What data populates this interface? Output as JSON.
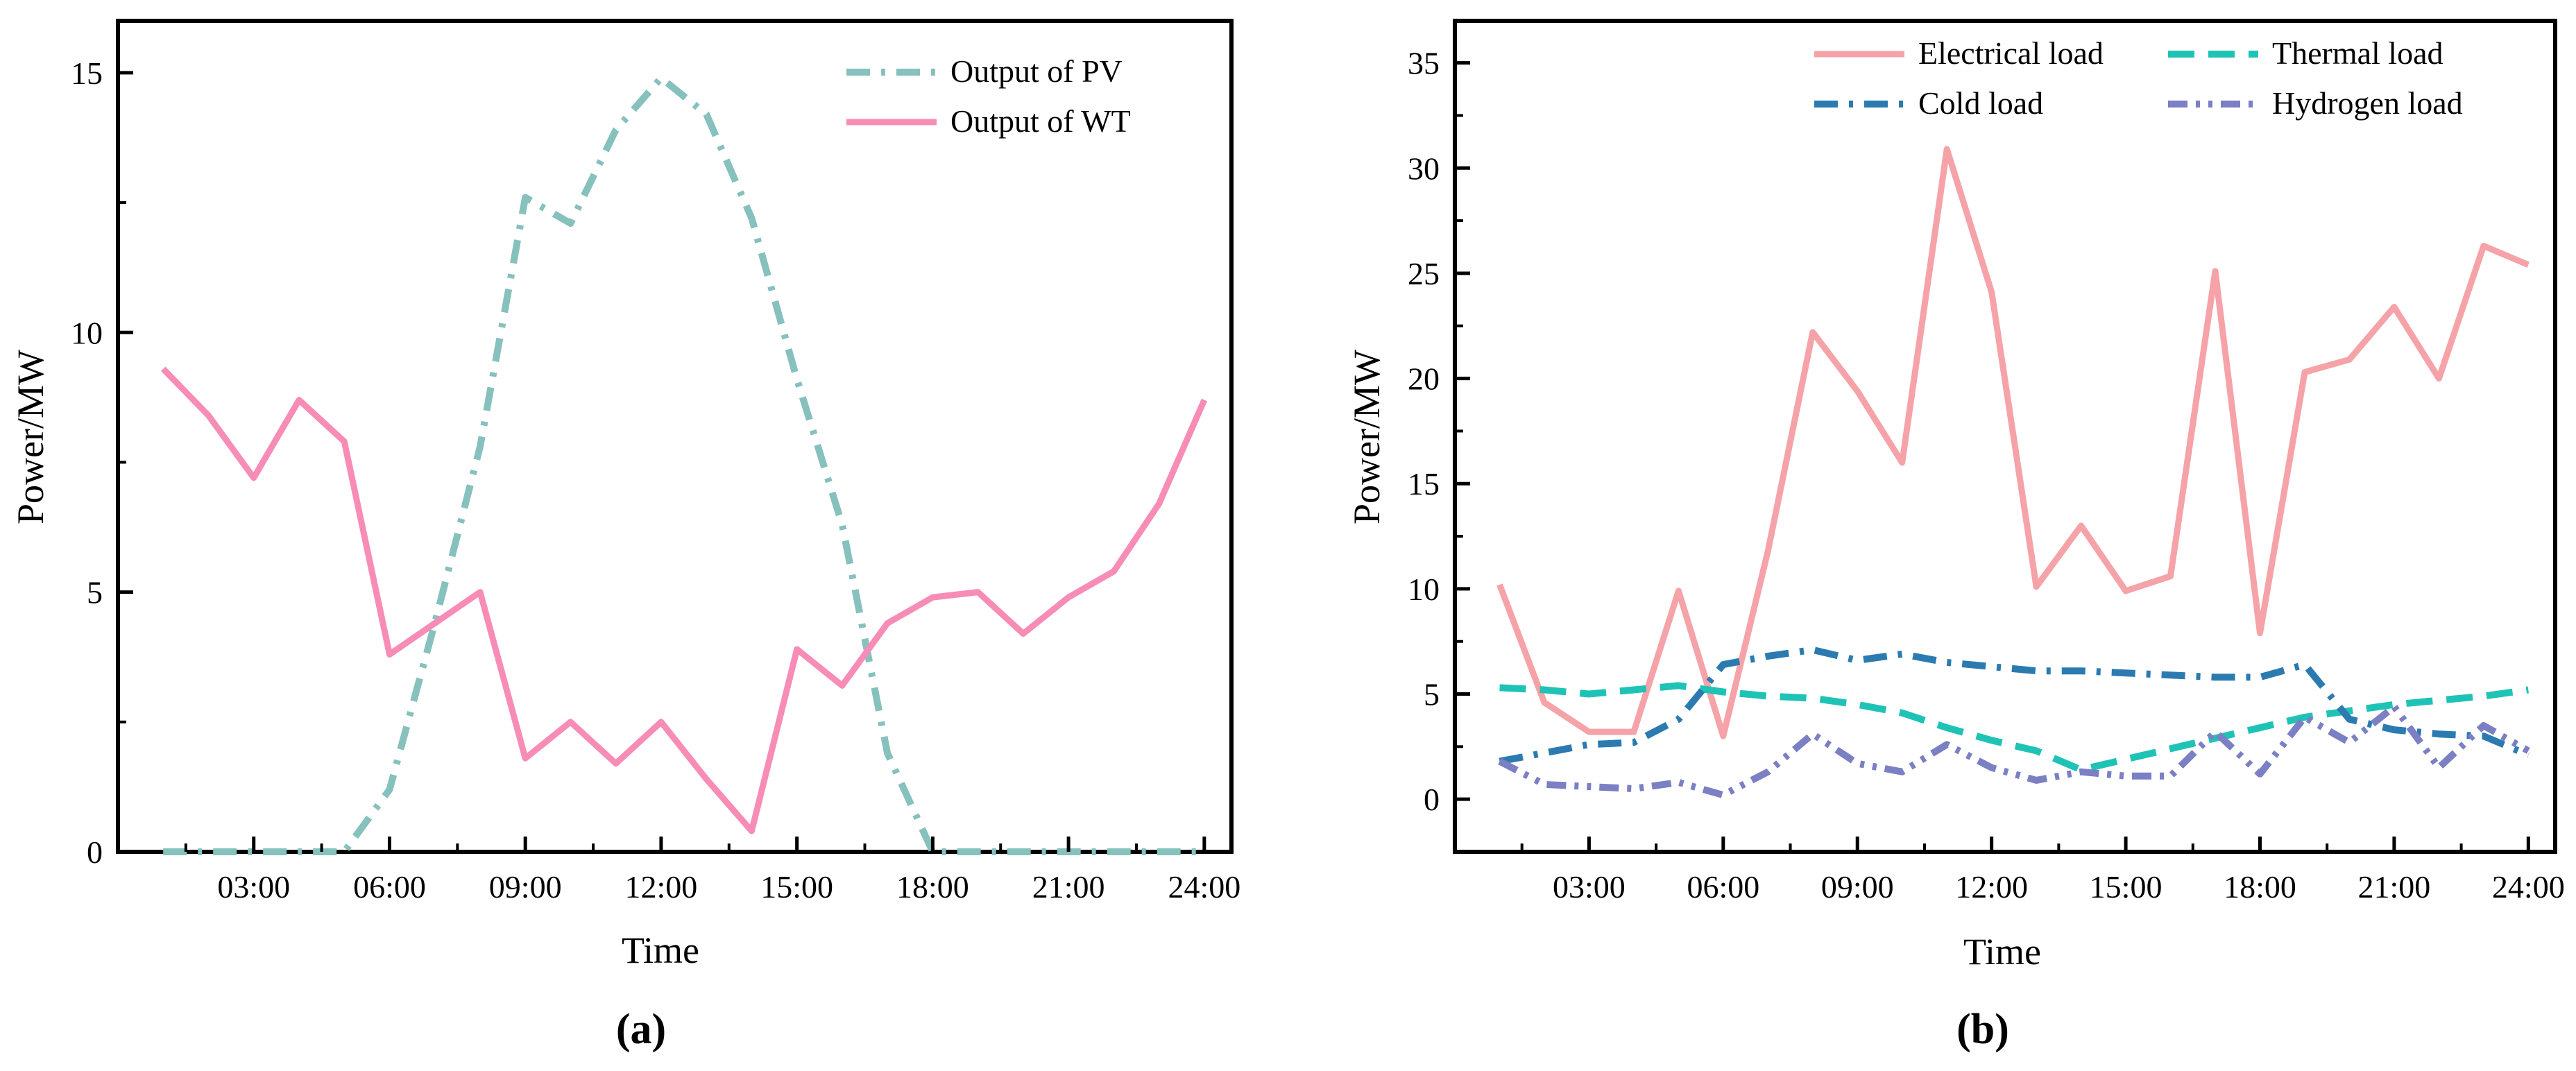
{
  "chart_data": [
    {
      "type": "line",
      "panel_label": "(a)",
      "xlabel": "Time",
      "ylabel": "Power/MW",
      "x": [
        1,
        2,
        3,
        4,
        5,
        6,
        7,
        8,
        9,
        10,
        11,
        12,
        13,
        14,
        15,
        16,
        17,
        18,
        19,
        20,
        21,
        22,
        23,
        24
      ],
      "xlim": [
        0,
        24.6
      ],
      "ylim": [
        0,
        16
      ],
      "xticks": [
        3,
        6,
        9,
        12,
        15,
        18,
        21,
        24
      ],
      "xtick_labels": [
        "03:00",
        "06:00",
        "09:00",
        "12:00",
        "15:00",
        "18:00",
        "21:00",
        "24:00"
      ],
      "yticks": [
        0,
        5,
        10,
        15
      ],
      "ytick_labels": [
        "0",
        "5",
        "10",
        "15"
      ],
      "legend_position": "top-right",
      "series": [
        {
          "name": "Output of PV",
          "color": "#86c1bd",
          "style": "dashdot",
          "values": [
            0,
            0,
            0,
            0,
            0,
            1.2,
            4.4,
            7.8,
            12.6,
            12.1,
            13.9,
            14.9,
            14.2,
            12.2,
            9.1,
            6.3,
            1.9,
            0,
            0,
            0,
            0,
            0,
            0,
            0
          ]
        },
        {
          "name": "Output of WT",
          "color": "#f78db6",
          "style": "solid",
          "values": [
            9.3,
            8.4,
            7.2,
            8.7,
            7.9,
            3.8,
            4.4,
            5.0,
            1.8,
            2.5,
            1.7,
            2.5,
            1.4,
            0.4,
            3.9,
            3.2,
            4.4,
            4.9,
            5.0,
            4.2,
            4.9,
            5.4,
            6.7,
            8.7
          ]
        }
      ]
    },
    {
      "type": "line",
      "panel_label": "(b)",
      "xlabel": "Time",
      "ylabel": "Power/MW",
      "x": [
        1,
        2,
        3,
        4,
        5,
        6,
        7,
        8,
        9,
        10,
        11,
        12,
        13,
        14,
        15,
        16,
        17,
        18,
        19,
        20,
        21,
        22,
        23,
        24
      ],
      "xlim": [
        0,
        24.6
      ],
      "ylim": [
        -2.5,
        37
      ],
      "xticks": [
        3,
        6,
        9,
        12,
        15,
        18,
        21,
        24
      ],
      "xtick_labels": [
        "03:00",
        "06:00",
        "09:00",
        "12:00",
        "15:00",
        "18:00",
        "21:00",
        "24:00"
      ],
      "yticks": [
        0,
        5,
        10,
        15,
        20,
        25,
        30,
        35
      ],
      "ytick_labels": [
        "0",
        "5",
        "10",
        "15",
        "20",
        "25",
        "30",
        "35"
      ],
      "legend_position": "top",
      "series": [
        {
          "name": "Electrical load",
          "color": "#f5a3a8",
          "style": "solid",
          "values": [
            10.2,
            4.6,
            3.2,
            3.2,
            9.9,
            3.0,
            11.8,
            22.2,
            19.4,
            16.0,
            30.9,
            24.1,
            10.1,
            13.0,
            9.9,
            10.6,
            25.1,
            7.9,
            20.3,
            20.9,
            23.4,
            20.0,
            26.3,
            25.4
          ]
        },
        {
          "name": "Thermal load",
          "color": "#1fc3b6",
          "style": "dashed",
          "values": [
            5.3,
            5.2,
            5.0,
            5.2,
            5.4,
            5.1,
            4.9,
            4.8,
            4.5,
            4.1,
            3.4,
            2.8,
            2.3,
            1.4,
            1.9,
            2.4,
            2.9,
            3.4,
            3.9,
            4.2,
            4.5,
            4.7,
            4.9,
            5.2
          ]
        },
        {
          "name": "Cold load",
          "color": "#2b7bb0",
          "style": "dashdot",
          "values": [
            1.8,
            2.2,
            2.6,
            2.7,
            3.8,
            6.4,
            6.8,
            7.1,
            6.6,
            6.9,
            6.5,
            6.3,
            6.1,
            6.1,
            6.0,
            5.9,
            5.8,
            5.8,
            6.4,
            3.8,
            3.3,
            3.1,
            3.0,
            2.1
          ]
        },
        {
          "name": "Hydrogen load",
          "color": "#7b7fc4",
          "style": "dashdotdot",
          "values": [
            1.8,
            0.7,
            0.6,
            0.5,
            0.8,
            0.2,
            1.3,
            3.1,
            1.7,
            1.3,
            2.6,
            1.5,
            0.9,
            1.3,
            1.1,
            1.1,
            3.2,
            1.2,
            3.9,
            2.7,
            4.4,
            1.5,
            3.5,
            2.3
          ]
        }
      ]
    }
  ]
}
